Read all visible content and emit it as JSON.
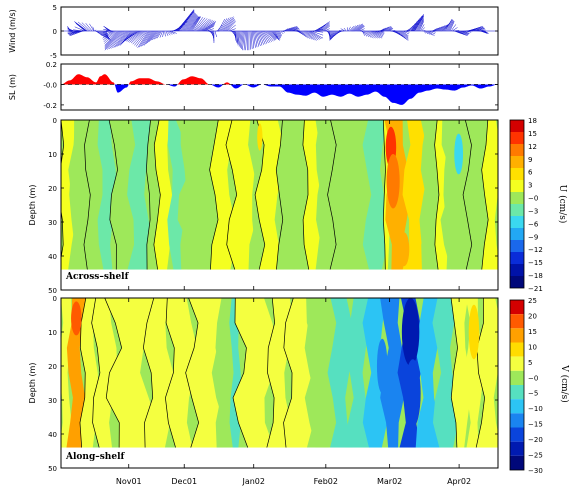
{
  "chart_data": [
    {
      "type": "vector",
      "ylabel": "Wind (m/s)",
      "ylim": [
        -5,
        5
      ],
      "yticks": [
        5,
        0,
        -5
      ],
      "wind_vectors": [
        {
          "t": 0.02,
          "u": -0.5,
          "v": 1.0
        },
        {
          "t": 0.03,
          "u": -1.5,
          "v": 0.5
        },
        {
          "t": 0.04,
          "u": -2.5,
          "v": -0.5
        },
        {
          "t": 0.05,
          "u": -3.0,
          "v": -1.0
        },
        {
          "t": 0.055,
          "u": -2.0,
          "v": 1.5
        },
        {
          "t": 0.06,
          "u": -3.0,
          "v": 2.0
        },
        {
          "t": 0.075,
          "u": -1.0,
          "v": 1.5
        },
        {
          "t": 0.08,
          "u": 1.5,
          "v": -1.0
        },
        {
          "t": 0.09,
          "u": 2.5,
          "v": -2.0
        },
        {
          "t": 0.1,
          "u": 1.0,
          "v": -1.5
        },
        {
          "t": 0.11,
          "u": -1.0,
          "v": 0.8
        },
        {
          "t": 0.115,
          "u": -1.8,
          "v": 1.0
        },
        {
          "t": 0.12,
          "u": -2.5,
          "v": -1.5
        },
        {
          "t": 0.13,
          "u": -3.0,
          "v": -3.0
        },
        {
          "t": 0.14,
          "u": -4.0,
          "v": -4.0
        },
        {
          "t": 0.15,
          "u": -3.0,
          "v": -3.5
        },
        {
          "t": 0.16,
          "u": -2.5,
          "v": -3.0
        },
        {
          "t": 0.17,
          "u": -3.0,
          "v": -2.5
        },
        {
          "t": 0.18,
          "u": -3.5,
          "v": -2.0
        },
        {
          "t": 0.19,
          "u": -3.0,
          "v": -2.5
        },
        {
          "t": 0.2,
          "u": -2.5,
          "v": -3.5
        },
        {
          "t": 0.21,
          "u": -2.0,
          "v": -3.0
        },
        {
          "t": 0.22,
          "u": -1.5,
          "v": -2.0
        },
        {
          "t": 0.23,
          "u": -1.0,
          "v": -1.5
        },
        {
          "t": 0.24,
          "u": 0.5,
          "v": -1.0
        },
        {
          "t": 0.25,
          "u": 1.5,
          "v": -0.5
        },
        {
          "t": 0.26,
          "u": 3.0,
          "v": 2.0
        },
        {
          "t": 0.265,
          "u": 4.0,
          "v": 4.5
        },
        {
          "t": 0.27,
          "u": 3.5,
          "v": 4.0
        },
        {
          "t": 0.28,
          "u": 3.0,
          "v": 3.5
        },
        {
          "t": 0.29,
          "u": 2.5,
          "v": 3.0
        },
        {
          "t": 0.3,
          "u": 2.0,
          "v": 3.0
        },
        {
          "t": 0.31,
          "u": 3.0,
          "v": 2.5
        },
        {
          "t": 0.32,
          "u": 3.5,
          "v": 2.0
        },
        {
          "t": 0.33,
          "u": 2.0,
          "v": 1.0
        },
        {
          "t": 0.34,
          "u": 1.0,
          "v": -1.0
        },
        {
          "t": 0.35,
          "u": 0.0,
          "v": -2.5
        },
        {
          "t": 0.36,
          "u": 1.5,
          "v": 2.5
        },
        {
          "t": 0.37,
          "u": 2.5,
          "v": 3.0
        },
        {
          "t": 0.38,
          "u": 2.0,
          "v": 2.0
        },
        {
          "t": 0.39,
          "u": 1.0,
          "v": -1.0
        },
        {
          "t": 0.4,
          "u": 0.0,
          "v": -2.0
        },
        {
          "t": 0.41,
          "u": -0.5,
          "v": -3.0
        },
        {
          "t": 0.42,
          "u": -0.5,
          "v": -4.0
        },
        {
          "t": 0.43,
          "u": 0.0,
          "v": -4.0
        },
        {
          "t": 0.44,
          "u": 0.5,
          "v": -3.5
        },
        {
          "t": 0.45,
          "u": 1.0,
          "v": -3.0
        },
        {
          "t": 0.46,
          "u": 1.5,
          "v": -2.5
        },
        {
          "t": 0.47,
          "u": 2.0,
          "v": -2.0
        },
        {
          "t": 0.48,
          "u": 1.5,
          "v": -1.5
        },
        {
          "t": 0.49,
          "u": 1.0,
          "v": -2.0
        },
        {
          "t": 0.5,
          "u": 0.5,
          "v": -1.0
        },
        {
          "t": 0.51,
          "u": 1.0,
          "v": 0.5
        },
        {
          "t": 0.52,
          "u": 2.0,
          "v": 1.0
        },
        {
          "t": 0.53,
          "u": 1.5,
          "v": 0.5
        },
        {
          "t": 0.54,
          "u": 1.0,
          "v": -0.5
        },
        {
          "t": 0.55,
          "u": 1.5,
          "v": -1.5
        },
        {
          "t": 0.56,
          "u": 2.5,
          "v": -2.0
        },
        {
          "t": 0.57,
          "u": 3.0,
          "v": -1.5
        },
        {
          "t": 0.58,
          "u": 2.0,
          "v": 1.0
        },
        {
          "t": 0.59,
          "u": 2.5,
          "v": 2.0
        },
        {
          "t": 0.6,
          "u": 1.5,
          "v": 1.0
        },
        {
          "t": 0.61,
          "u": 0.5,
          "v": -1.0
        },
        {
          "t": 0.62,
          "u": -0.5,
          "v": -2.0
        },
        {
          "t": 0.63,
          "u": -1.0,
          "v": -1.5
        },
        {
          "t": 0.64,
          "u": -1.5,
          "v": -1.0
        },
        {
          "t": 0.65,
          "u": -1.0,
          "v": 0.5
        },
        {
          "t": 0.66,
          "u": 1.0,
          "v": 1.0
        },
        {
          "t": 0.67,
          "u": 2.0,
          "v": 1.5
        },
        {
          "t": 0.68,
          "u": 1.5,
          "v": 1.0
        },
        {
          "t": 0.69,
          "u": 0.5,
          "v": -1.0
        },
        {
          "t": 0.7,
          "u": 1.5,
          "v": -1.5
        },
        {
          "t": 0.71,
          "u": 2.5,
          "v": -1.5
        },
        {
          "t": 0.72,
          "u": 2.0,
          "v": -0.5
        },
        {
          "t": 0.73,
          "u": 1.0,
          "v": 0.5
        },
        {
          "t": 0.74,
          "u": 1.5,
          "v": 1.0
        },
        {
          "t": 0.75,
          "u": 1.0,
          "v": 0.5
        },
        {
          "t": 0.76,
          "u": 2.0,
          "v": -1.0
        },
        {
          "t": 0.77,
          "u": 2.5,
          "v": -2.0
        },
        {
          "t": 0.78,
          "u": 1.5,
          "v": -1.0
        },
        {
          "t": 0.79,
          "u": 1.0,
          "v": 0.5
        },
        {
          "t": 0.8,
          "u": 1.5,
          "v": 2.0
        },
        {
          "t": 0.805,
          "u": 2.5,
          "v": 3.5
        },
        {
          "t": 0.81,
          "u": 2.0,
          "v": 3.0
        },
        {
          "t": 0.82,
          "u": 1.0,
          "v": 2.0
        },
        {
          "t": 0.83,
          "u": 0.5,
          "v": -0.5
        },
        {
          "t": 0.84,
          "u": 1.5,
          "v": -1.0
        },
        {
          "t": 0.85,
          "u": 1.0,
          "v": 0.5
        },
        {
          "t": 0.86,
          "u": 1.5,
          "v": 1.0
        },
        {
          "t": 0.87,
          "u": 2.0,
          "v": 1.5
        },
        {
          "t": 0.88,
          "u": 1.5,
          "v": 2.5
        },
        {
          "t": 0.89,
          "u": 1.0,
          "v": 2.0
        },
        {
          "t": 0.9,
          "u": 1.5,
          "v": -0.5
        },
        {
          "t": 0.91,
          "u": 2.0,
          "v": -1.0
        },
        {
          "t": 0.92,
          "u": 1.5,
          "v": -0.5
        },
        {
          "t": 0.93,
          "u": 2.0,
          "v": 0.5
        },
        {
          "t": 0.94,
          "u": 2.5,
          "v": 1.0
        },
        {
          "t": 0.95,
          "u": 2.0,
          "v": 0.5
        },
        {
          "t": 0.96,
          "u": 1.5,
          "v": -0.5
        },
        {
          "t": 0.97,
          "u": 1.0,
          "v": -0.5
        }
      ]
    },
    {
      "type": "area",
      "ylabel": "SL (m)",
      "ylim": [
        -0.25,
        0.2
      ],
      "ytick_labels": [
        "0.2",
        "-0.0",
        "-0.2"
      ],
      "ytick_values": [
        0.2,
        0.0,
        -0.2
      ],
      "positive_color": "#ff0000",
      "negative_color": "#0000ff",
      "t": [
        0.0,
        0.02,
        0.04,
        0.06,
        0.08,
        0.09,
        0.1,
        0.12,
        0.13,
        0.15,
        0.16,
        0.18,
        0.2,
        0.22,
        0.24,
        0.26,
        0.28,
        0.3,
        0.32,
        0.34,
        0.36,
        0.38,
        0.4,
        0.42,
        0.44,
        0.46,
        0.48,
        0.5,
        0.52,
        0.54,
        0.56,
        0.58,
        0.6,
        0.62,
        0.64,
        0.66,
        0.68,
        0.7,
        0.72,
        0.74,
        0.76,
        0.78,
        0.8,
        0.82,
        0.84,
        0.86,
        0.88,
        0.9,
        0.92,
        0.94,
        0.96,
        0.98,
        1.0
      ],
      "values": [
        0.0,
        0.04,
        0.1,
        0.07,
        0.02,
        0.08,
        0.1,
        0.02,
        -0.08,
        -0.03,
        0.03,
        0.06,
        0.06,
        0.03,
        0.0,
        -0.02,
        0.05,
        0.08,
        0.06,
        0.0,
        -0.03,
        0.02,
        -0.04,
        0.0,
        -0.03,
        0.0,
        -0.02,
        -0.02,
        -0.08,
        -0.1,
        -0.11,
        -0.08,
        -0.12,
        -0.1,
        -0.12,
        -0.09,
        -0.12,
        -0.1,
        -0.07,
        -0.12,
        -0.18,
        -0.2,
        -0.14,
        -0.08,
        -0.06,
        -0.04,
        -0.05,
        -0.06,
        -0.03,
        -0.01,
        -0.04,
        -0.02,
        0.0
      ]
    },
    {
      "type": "heatmap",
      "ylabel": "Depth (m)",
      "ylim": [
        50,
        0
      ],
      "yticks": [
        0,
        10,
        20,
        30,
        40,
        50
      ],
      "panel_label": "Across–shelf",
      "colorbar_label": "U (cm/s)",
      "colorbar_ticks": [
        "18",
        "15",
        "12",
        "9",
        "6",
        "3",
        "−0",
        "−3",
        "−6",
        "−9",
        "−12",
        "−15",
        "−18",
        "−21"
      ],
      "colorbar_colors": [
        "#d40000",
        "#ff3300",
        "#ff7a00",
        "#ffb000",
        "#ffe000",
        "#f4ff20",
        "#9ee85a",
        "#6ce8a8",
        "#3ad8f0",
        "#22a8f4",
        "#1a68ec",
        "#0a2cd8",
        "#0012a8",
        "#00087a"
      ],
      "background_color": "#9ee85a",
      "depth_min": 0,
      "depth_max": 44,
      "columns": [
        {
          "t0": 0.0,
          "t1": 0.025,
          "value": 1.5
        },
        {
          "t0": 0.025,
          "t1": 0.06,
          "value": -3
        },
        {
          "t0": 0.06,
          "t1": 0.09,
          "value": -1
        },
        {
          "t0": 0.09,
          "t1": 0.12,
          "value": -4
        },
        {
          "t0": 0.12,
          "t1": 0.16,
          "value": -2
        },
        {
          "t0": 0.16,
          "t1": 0.2,
          "value": -4
        },
        {
          "t0": 0.2,
          "t1": 0.22,
          "value": -1
        },
        {
          "t0": 0.22,
          "t1": 0.25,
          "value": 1
        },
        {
          "t0": 0.25,
          "t1": 0.28,
          "value": -4
        },
        {
          "t0": 0.28,
          "t1": 0.35,
          "value": -3
        },
        {
          "t0": 0.35,
          "t1": 0.39,
          "value": 1
        },
        {
          "t0": 0.39,
          "t1": 0.44,
          "value": 1
        },
        {
          "t0": 0.44,
          "t1": 0.455,
          "value": -3
        },
        {
          "t0": 0.455,
          "t1": 0.5,
          "value": 1
        },
        {
          "t0": 0.5,
          "t1": 0.53,
          "value": -2
        },
        {
          "t0": 0.53,
          "t1": 0.56,
          "value": -3
        },
        {
          "t0": 0.56,
          "t1": 0.59,
          "value": 0
        },
        {
          "t0": 0.59,
          "t1": 0.62,
          "value": -3
        },
        {
          "t0": 0.62,
          "t1": 0.66,
          "value": -1
        },
        {
          "t0": 0.66,
          "t1": 0.7,
          "value": -3
        },
        {
          "t0": 0.7,
          "t1": 0.74,
          "value": -4
        },
        {
          "t0": 0.74,
          "t1": 0.75,
          "value": 2
        },
        {
          "t0": 0.75,
          "t1": 0.79,
          "value": 7
        },
        {
          "t0": 0.79,
          "t1": 0.83,
          "value": 4
        },
        {
          "t0": 0.83,
          "t1": 0.86,
          "value": -3
        },
        {
          "t0": 0.86,
          "t1": 0.88,
          "value": 1
        },
        {
          "t0": 0.88,
          "t1": 0.93,
          "value": -3
        },
        {
          "t0": 0.93,
          "t1": 0.97,
          "value": -1
        },
        {
          "t0": 0.97,
          "t1": 1.0,
          "value": 1
        }
      ],
      "blobs": [
        {
          "t": 0.755,
          "d": 8,
          "rt": 0.012,
          "rd": 6,
          "value": 14
        },
        {
          "t": 0.76,
          "d": 18,
          "rt": 0.015,
          "rd": 8,
          "value": 9
        },
        {
          "t": 0.785,
          "d": 38,
          "rt": 0.012,
          "rd": 5,
          "value": 7
        },
        {
          "t": 0.455,
          "d": 5,
          "rt": 0.006,
          "rd": 4,
          "value": 5
        },
        {
          "t": 0.91,
          "d": 10,
          "rt": 0.01,
          "rd": 6,
          "value": -9
        }
      ]
    },
    {
      "type": "heatmap",
      "ylabel": "Depth (m)",
      "ylim": [
        50,
        0
      ],
      "yticks": [
        0,
        10,
        20,
        30,
        40,
        50
      ],
      "panel_label": "Along–shelf",
      "colorbar_label": "V (cm/s)",
      "colorbar_ticks": [
        "25",
        "20",
        "15",
        "10",
        "5",
        "−0",
        "−5",
        "−10",
        "−15",
        "−20",
        "−25",
        "−30"
      ],
      "colorbar_colors": [
        "#d40000",
        "#ff5a00",
        "#ffa000",
        "#ffdc00",
        "#f4ff40",
        "#9ee85a",
        "#56e0c0",
        "#2cc4f4",
        "#1a84f0",
        "#0a44dc",
        "#001ab0",
        "#00087a"
      ],
      "background_color": "#9ee85a",
      "depth_min": 0,
      "depth_max": 44,
      "columns": [
        {
          "t0": 0.0,
          "t1": 0.02,
          "value": 3
        },
        {
          "t0": 0.02,
          "t1": 0.05,
          "value": 14
        },
        {
          "t0": 0.05,
          "t1": 0.08,
          "value": 2
        },
        {
          "t0": 0.08,
          "t1": 0.12,
          "value": 0
        },
        {
          "t0": 0.12,
          "t1": 0.2,
          "value": 2
        },
        {
          "t0": 0.2,
          "t1": 0.25,
          "value": 0
        },
        {
          "t0": 0.25,
          "t1": 0.3,
          "value": 2
        },
        {
          "t0": 0.3,
          "t1": 0.36,
          "value": 0
        },
        {
          "t0": 0.36,
          "t1": 0.39,
          "value": -3
        },
        {
          "t0": 0.39,
          "t1": 0.41,
          "value": -6
        },
        {
          "t0": 0.41,
          "t1": 0.48,
          "value": 0
        },
        {
          "t0": 0.48,
          "t1": 0.52,
          "value": 2
        },
        {
          "t0": 0.52,
          "t1": 0.57,
          "value": 0
        },
        {
          "t0": 0.57,
          "t1": 0.62,
          "value": -3
        },
        {
          "t0": 0.62,
          "t1": 0.66,
          "value": -6
        },
        {
          "t0": 0.66,
          "t1": 0.7,
          "value": -9
        },
        {
          "t0": 0.7,
          "t1": 0.74,
          "value": -14
        },
        {
          "t0": 0.74,
          "t1": 0.78,
          "value": -18
        },
        {
          "t0": 0.78,
          "t1": 0.82,
          "value": -22
        },
        {
          "t0": 0.82,
          "t1": 0.86,
          "value": -14
        },
        {
          "t0": 0.86,
          "t1": 0.9,
          "value": -6
        },
        {
          "t0": 0.9,
          "t1": 0.93,
          "value": 2
        },
        {
          "t0": 0.93,
          "t1": 0.96,
          "value": 4
        },
        {
          "t0": 0.96,
          "t1": 1.0,
          "value": 1
        }
      ],
      "blobs": [
        {
          "t": 0.035,
          "d": 6,
          "rt": 0.012,
          "rd": 5,
          "value": 18
        },
        {
          "t": 0.8,
          "d": 10,
          "rt": 0.02,
          "rd": 10,
          "value": -28
        },
        {
          "t": 0.805,
          "d": 28,
          "rt": 0.018,
          "rd": 10,
          "value": -25
        },
        {
          "t": 0.735,
          "d": 20,
          "rt": 0.012,
          "rd": 8,
          "value": -20
        },
        {
          "t": 0.945,
          "d": 10,
          "rt": 0.012,
          "rd": 8,
          "value": 8
        }
      ]
    }
  ],
  "time_axis": {
    "ticks": [
      {
        "label": "Nov01",
        "t": 0.155
      },
      {
        "label": "Dec01",
        "t": 0.282
      },
      {
        "label": "Jan02",
        "t": 0.441
      },
      {
        "label": "Feb02",
        "t": 0.606
      },
      {
        "label": "Mar02",
        "t": 0.752
      },
      {
        "label": "Apr02",
        "t": 0.911
      }
    ]
  }
}
